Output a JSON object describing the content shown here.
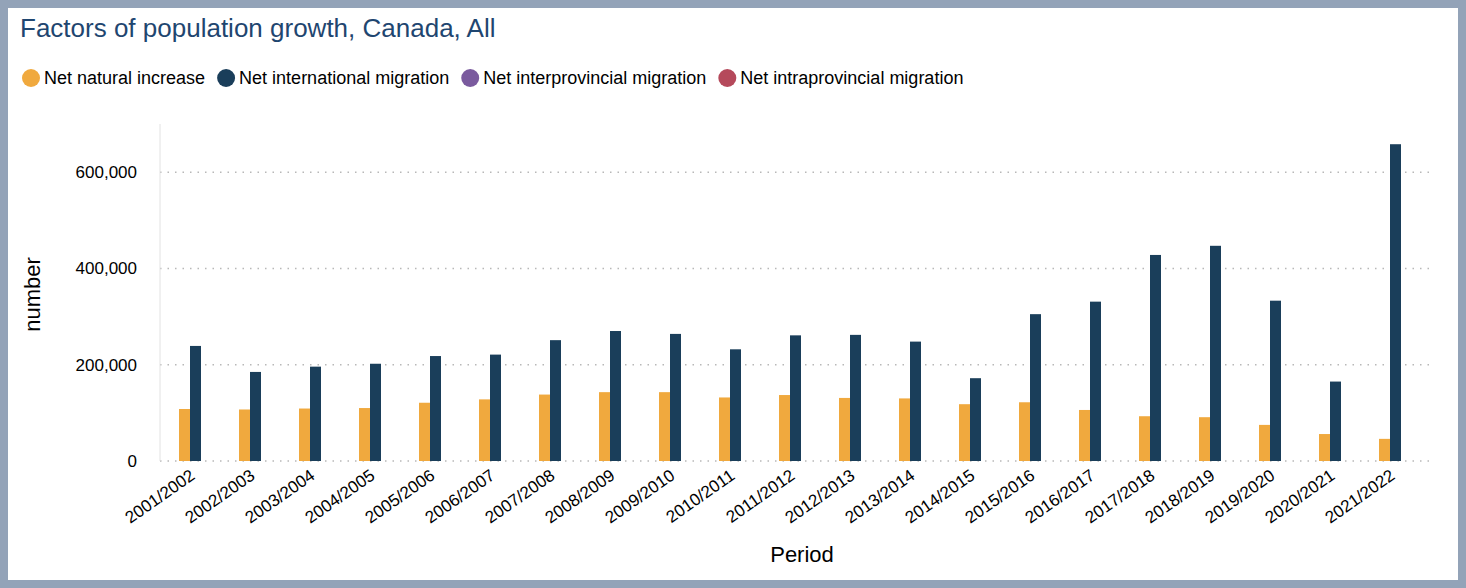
{
  "chart_data": {
    "type": "bar",
    "title": "Factors of population growth, Canada, All",
    "x_label": "Period",
    "y_label": "number",
    "categories": [
      "2001/2002",
      "2002/2003",
      "2003/2004",
      "2004/2005",
      "2005/2006",
      "2006/2007",
      "2007/2008",
      "2008/2009",
      "2009/2010",
      "2010/2011",
      "2011/2012",
      "2012/2013",
      "2013/2014",
      "2014/2015",
      "2015/2016",
      "2016/2017",
      "2017/2018",
      "2018/2019",
      "2019/2020",
      "2020/2021",
      "2021/2022"
    ],
    "series": [
      {
        "name": "Net natural increase",
        "color": "#f0a93e",
        "values": [
          108000,
          107000,
          109000,
          110000,
          121000,
          128000,
          138000,
          143000,
          143000,
          132000,
          137000,
          131000,
          130000,
          118000,
          122000,
          106000,
          93000,
          91000,
          75000,
          56000,
          46000
        ]
      },
      {
        "name": "Net international migration",
        "color": "#1a3e5a",
        "values": [
          239000,
          185000,
          196000,
          202000,
          218000,
          221000,
          251000,
          270000,
          264000,
          232000,
          261000,
          262000,
          248000,
          172000,
          305000,
          331000,
          428000,
          447000,
          333000,
          165000,
          658000
        ]
      },
      {
        "name": "Net interprovincial migration",
        "color": "#7a5a9e",
        "values": [
          null,
          null,
          null,
          null,
          null,
          null,
          null,
          null,
          null,
          null,
          null,
          null,
          null,
          null,
          null,
          null,
          null,
          null,
          null,
          null,
          null
        ]
      },
      {
        "name": "Net intraprovincial migration",
        "color": "#b5495b",
        "values": [
          null,
          null,
          null,
          null,
          null,
          null,
          null,
          null,
          null,
          null,
          null,
          null,
          null,
          null,
          null,
          null,
          null,
          null,
          null,
          null,
          null
        ]
      }
    ],
    "ylim": [
      0,
      700000
    ],
    "yticks": [
      0,
      {
        "value": 200000,
        "label": "200,000"
      },
      {
        "value": 400000,
        "label": "400,000"
      },
      {
        "value": 600000,
        "label": "600,000"
      }
    ],
    "grid": true,
    "legend": "top-left"
  }
}
